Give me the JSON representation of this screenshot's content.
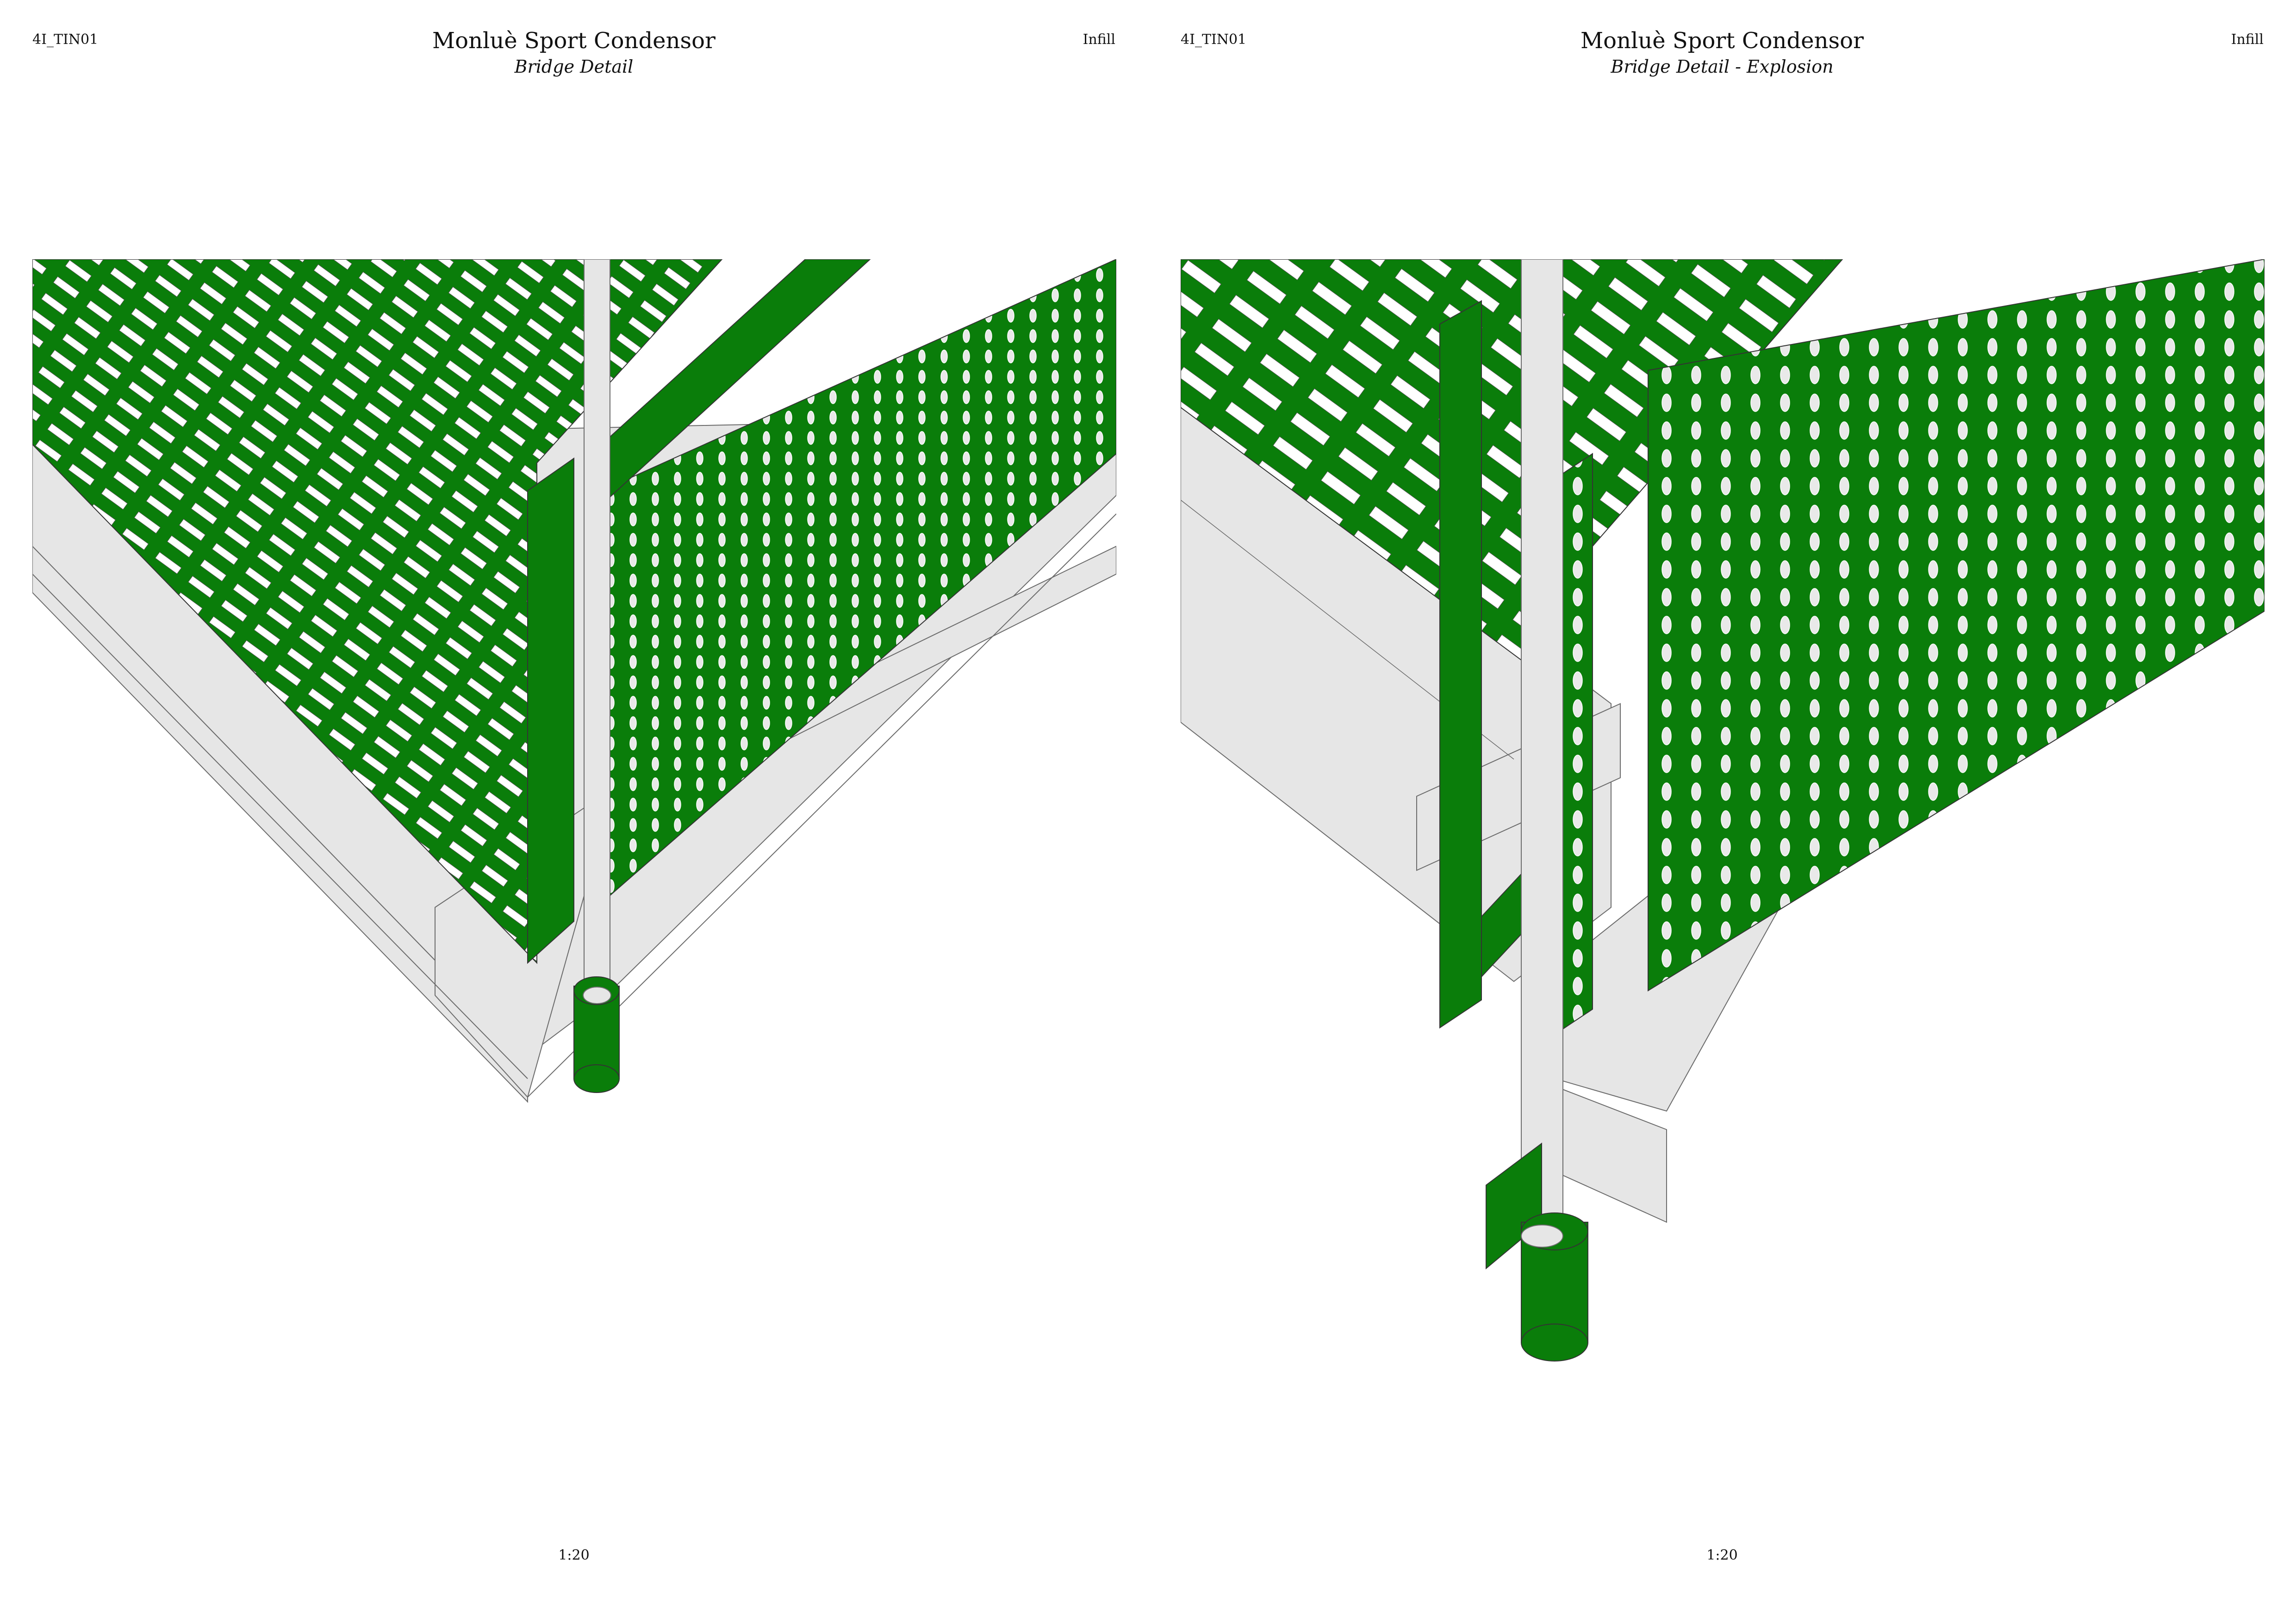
{
  "colors": {
    "green": "#0a7d0a",
    "grey": "#e6e6e6",
    "line": "#6b6b6b"
  },
  "sheets": [
    {
      "code": "4I_TIN01",
      "title": "Monluè Sport Condensor",
      "subtitle": "Bridge Detail",
      "category": "Infill",
      "scale": "1:20"
    },
    {
      "code": "4I_TIN01",
      "title": "Monluè Sport Condensor",
      "subtitle": "Bridge Detail - Explosion",
      "category": "Infill",
      "scale": "1:20"
    }
  ]
}
